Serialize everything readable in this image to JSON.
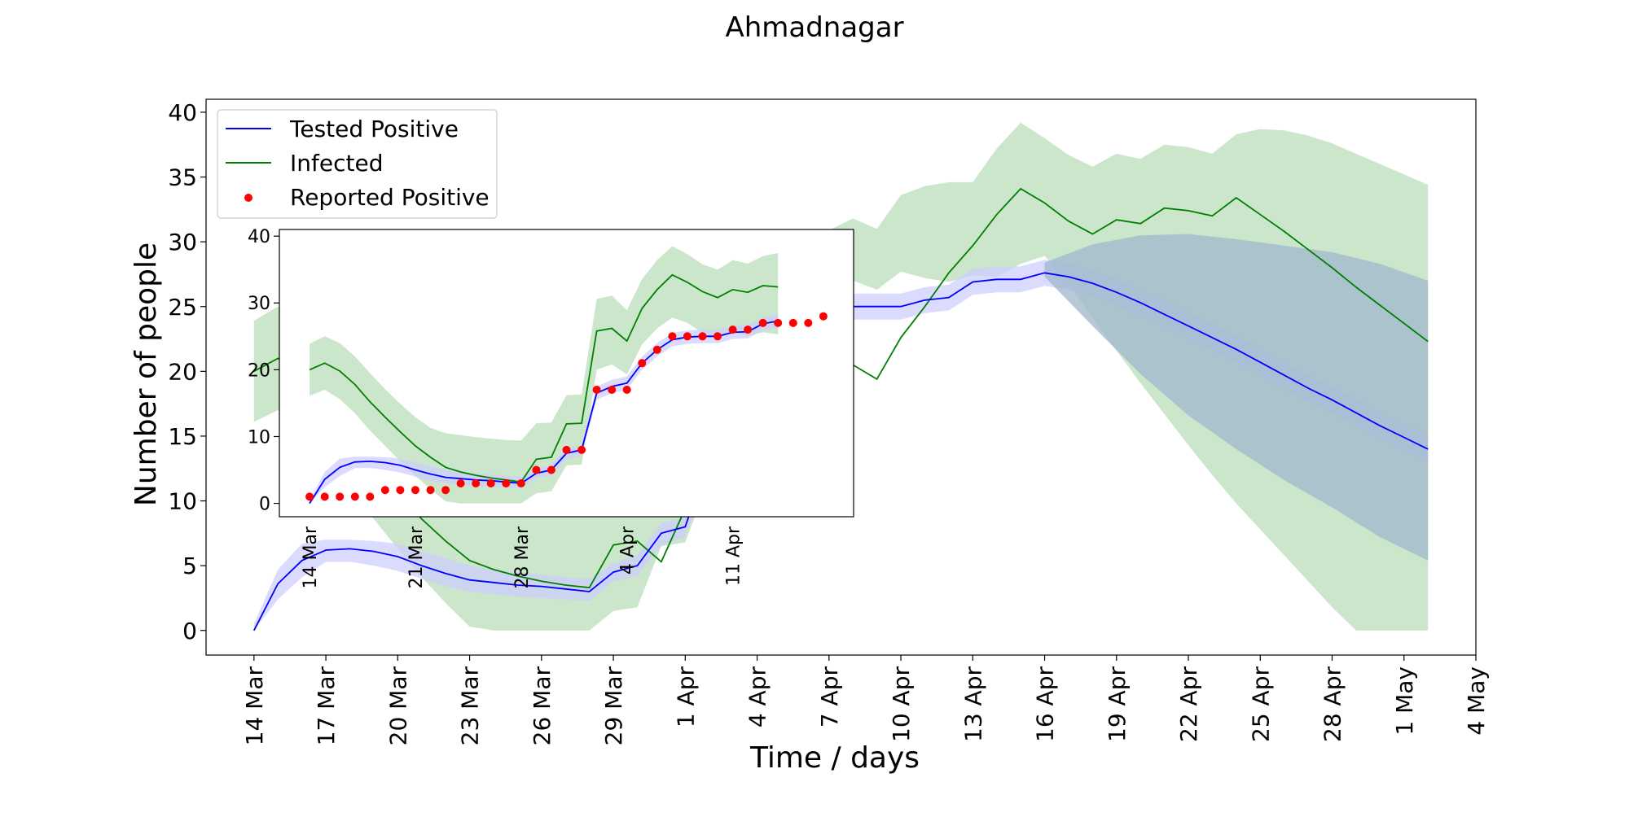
{
  "chart_data": [
    {
      "id": "main",
      "type": "line",
      "title": "Ahmadnagar",
      "xlabel": "Time / days",
      "ylabel": "Number of people",
      "ylim": [
        -1.9,
        41
      ],
      "xlim": [
        "2020-03-12",
        "2020-05-04"
      ],
      "yticks": [
        0,
        5,
        10,
        15,
        20,
        25,
        30,
        35,
        40
      ],
      "xticks": [
        "14 Mar",
        "17 Mar",
        "20 Mar",
        "23 Mar",
        "26 Mar",
        "29 Mar",
        "1 Apr",
        "4 Apr",
        "7 Apr",
        "10 Apr",
        "13 Apr",
        "16 Apr",
        "19 Apr",
        "22 Apr",
        "25 Apr",
        "28 Apr",
        "1 May",
        "4 May"
      ],
      "xtick_dates": [
        "2020-03-14",
        "2020-03-17",
        "2020-03-20",
        "2020-03-23",
        "2020-03-26",
        "2020-03-29",
        "2020-04-01",
        "2020-04-04",
        "2020-04-07",
        "2020-04-10",
        "2020-04-13",
        "2020-04-16",
        "2020-04-19",
        "2020-04-22",
        "2020-04-25",
        "2020-04-28",
        "2020-05-01",
        "2020-05-04"
      ],
      "grid": false,
      "legend_position": "upper-left",
      "legend": [
        "Tested Positive",
        "Infected",
        "Reported Positive"
      ],
      "series": [
        {
          "name": "Infected",
          "color": "#008000",
          "band_color": "#b6dbb6",
          "x": [
            "2020-03-14",
            "2020-03-15",
            "2020-03-16",
            "2020-03-17",
            "2020-03-18",
            "2020-03-19",
            "2020-03-20",
            "2020-03-21",
            "2020-03-22",
            "2020-03-23",
            "2020-03-24",
            "2020-03-25",
            "2020-03-26",
            "2020-03-27",
            "2020-03-28",
            "2020-03-29",
            "2020-03-30",
            "2020-03-31",
            "2020-04-01",
            "2020-04-02",
            "2020-04-03",
            "2020-04-04",
            "2020-04-05",
            "2020-04-06",
            "2020-04-07",
            "2020-04-08",
            "2020-04-09",
            "2020-04-10",
            "2020-04-11",
            "2020-04-12",
            "2020-04-13",
            "2020-04-14",
            "2020-04-15",
            "2020-04-16",
            "2020-04-17",
            "2020-04-18",
            "2020-04-19",
            "2020-04-20",
            "2020-04-21",
            "2020-04-22",
            "2020-04-23",
            "2020-04-24",
            "2020-04-25",
            "2020-04-26",
            "2020-04-27",
            "2020-04-28",
            "2020-04-29",
            "2020-04-30",
            "2020-05-01",
            "2020-05-02"
          ],
          "values": [
            20.0,
            21.0,
            19.8,
            17.8,
            15.2,
            12.9,
            10.7,
            8.6,
            6.9,
            5.4,
            4.7,
            4.2,
            3.8,
            3.5,
            3.3,
            6.6,
            6.9,
            5.3,
            9.4,
            12.2,
            14.6,
            16.7,
            14.8,
            16.8,
            19.4,
            20.5,
            19.4,
            22.6,
            25.0,
            27.6,
            29.7,
            32.1,
            34.1,
            33.0,
            31.6,
            30.6,
            31.7,
            31.4,
            32.6,
            32.4,
            32.0,
            33.4,
            32.1,
            30.8,
            29.4,
            28.0,
            26.5,
            25.1,
            23.7,
            22.3
          ],
          "lower": [
            16.1,
            17.0,
            15.6,
            13.5,
            10.9,
            8.6,
            6.3,
            4.1,
            2.1,
            0.3,
            0.0,
            0.0,
            0.0,
            0.0,
            0.0,
            1.5,
            1.8,
            6.5,
            6.8,
            11.7,
            14.2,
            19.5,
            22.6,
            25.6,
            27.5,
            27.0,
            26.3,
            27.7,
            27.2,
            26.9,
            27.4,
            27.3,
            28.3,
            28.9,
            26.8,
            24.1,
            21.6,
            19.1,
            16.7,
            14.3,
            12.0,
            9.8,
            7.8,
            5.8,
            3.8,
            1.8,
            0.0,
            0.0,
            0.0,
            0.0
          ],
          "upper": [
            23.9,
            25.0,
            24.0,
            22.0,
            19.5,
            17.1,
            14.9,
            12.9,
            11.3,
            10.5,
            10.2,
            9.9,
            9.7,
            9.5,
            9.4,
            10.7,
            10.9,
            11.3,
            12.1,
            15.7,
            18.3,
            22.8,
            25.3,
            28.2,
            30.9,
            31.8,
            31.0,
            33.6,
            34.3,
            34.6,
            34.6,
            37.2,
            39.2,
            38.0,
            36.7,
            35.8,
            36.8,
            36.4,
            37.5,
            37.3,
            36.8,
            38.3,
            38.7,
            38.6,
            38.2,
            37.6,
            36.8,
            36.0,
            35.2,
            34.4
          ]
        },
        {
          "name": "Tested Positive",
          "color": "#0000ff",
          "band_color": "#ccccff",
          "x": [
            "2020-03-14",
            "2020-03-15",
            "2020-03-16",
            "2020-03-17",
            "2020-03-18",
            "2020-03-19",
            "2020-03-20",
            "2020-03-21",
            "2020-03-22",
            "2020-03-23",
            "2020-03-24",
            "2020-03-25",
            "2020-03-26",
            "2020-03-27",
            "2020-03-28",
            "2020-03-29",
            "2020-03-30",
            "2020-03-31",
            "2020-04-01",
            "2020-04-02",
            "2020-04-03",
            "2020-04-04",
            "2020-04-05",
            "2020-04-06",
            "2020-04-07",
            "2020-04-08",
            "2020-04-09",
            "2020-04-10",
            "2020-04-11",
            "2020-04-12",
            "2020-04-13",
            "2020-04-14",
            "2020-04-15",
            "2020-04-16",
            "2020-04-17",
            "2020-04-18",
            "2020-04-19",
            "2020-04-20",
            "2020-04-21",
            "2020-04-22",
            "2020-04-23",
            "2020-04-24",
            "2020-04-25",
            "2020-04-26",
            "2020-04-27",
            "2020-04-28",
            "2020-04-29",
            "2020-04-30",
            "2020-05-01",
            "2020-05-02"
          ],
          "values": [
            0.0,
            3.6,
            5.4,
            6.2,
            6.3,
            6.1,
            5.7,
            5.0,
            4.4,
            3.9,
            3.7,
            3.5,
            3.4,
            3.2,
            3.0,
            4.5,
            5.0,
            7.5,
            8.0,
            13.5,
            15.0,
            15.8,
            20.3,
            22.5,
            23.0,
            25.0,
            25.0,
            25.0,
            25.5,
            25.7,
            26.9,
            27.1,
            27.1,
            27.6,
            27.3,
            26.8,
            26.1,
            25.3,
            24.4,
            23.5,
            22.6,
            21.7,
            20.7,
            19.7,
            18.7,
            17.8,
            16.8,
            15.8,
            14.9,
            14.0
          ],
          "lower": [
            0.0,
            2.4,
            4.1,
            5.3,
            5.3,
            5.0,
            4.6,
            4.0,
            3.4,
            3.0,
            2.8,
            2.6,
            2.5,
            2.4,
            2.3,
            3.8,
            4.2,
            6.6,
            7.2,
            12.5,
            14.0,
            14.8,
            19.3,
            21.5,
            22.0,
            24.0,
            24.0,
            24.0,
            24.5,
            24.7,
            25.9,
            26.1,
            26.1,
            26.6,
            26.3,
            25.8,
            25.1,
            24.3,
            23.4,
            22.5,
            21.6,
            20.7,
            19.7,
            18.7,
            17.7,
            16.8,
            15.8,
            14.8,
            13.9,
            13.0
          ],
          "upper": [
            0.5,
            4.7,
            6.7,
            7.0,
            7.0,
            6.9,
            6.7,
            6.1,
            5.6,
            5.0,
            4.7,
            4.5,
            4.3,
            4.1,
            4.0,
            5.2,
            5.8,
            8.3,
            8.7,
            14.4,
            16.0,
            16.8,
            21.3,
            23.5,
            24.0,
            26.0,
            26.0,
            26.0,
            26.5,
            26.7,
            27.9,
            28.1,
            28.1,
            28.6,
            28.3,
            27.8,
            27.1,
            26.3,
            25.4,
            24.5,
            23.6,
            22.7,
            21.7,
            20.7,
            19.7,
            18.8,
            17.8,
            16.8,
            15.9,
            15.0
          ]
        },
        {
          "name": "Uncertainty (overlap)",
          "color": "#7f9fbf",
          "band_color": "#9fb7cc",
          "x": [
            "2020-04-16",
            "2020-04-18",
            "2020-04-20",
            "2020-04-22",
            "2020-04-24",
            "2020-04-26",
            "2020-04-28",
            "2020-04-30",
            "2020-05-02"
          ],
          "lower": [
            27.3,
            23.5,
            19.8,
            16.6,
            14.0,
            11.6,
            9.5,
            7.2,
            5.4
          ],
          "upper": [
            28.4,
            29.8,
            30.5,
            30.6,
            30.2,
            29.7,
            29.2,
            28.3,
            27.0
          ]
        }
      ]
    },
    {
      "id": "inset",
      "type": "line",
      "title": "",
      "xlabel": "",
      "ylabel": "",
      "ylim": [
        -2,
        41
      ],
      "xlim": [
        "2020-03-12",
        "2020-04-19"
      ],
      "yticks": [
        0,
        10,
        20,
        30,
        40
      ],
      "xticks": [
        "14 Mar",
        "21 Mar",
        "28 Mar",
        "4 Apr",
        "11 Apr"
      ],
      "xtick_dates": [
        "2020-03-14",
        "2020-03-21",
        "2020-03-28",
        "2020-04-04",
        "2020-04-11"
      ],
      "grid": false,
      "series": [
        {
          "name": "Infected",
          "color": "#008000",
          "band_color": "#b6dbb6",
          "x": [
            "2020-03-14",
            "2020-03-15",
            "2020-03-16",
            "2020-03-17",
            "2020-03-18",
            "2020-03-19",
            "2020-03-20",
            "2020-03-21",
            "2020-03-22",
            "2020-03-23",
            "2020-03-24",
            "2020-03-25",
            "2020-03-26",
            "2020-03-27",
            "2020-03-28",
            "2020-03-29",
            "2020-03-30",
            "2020-03-31",
            "2020-04-01",
            "2020-04-02",
            "2020-04-03",
            "2020-04-04",
            "2020-04-05",
            "2020-04-06",
            "2020-04-07",
            "2020-04-08",
            "2020-04-09",
            "2020-04-10",
            "2020-04-11",
            "2020-04-12",
            "2020-04-13",
            "2020-04-14"
          ],
          "values": [
            20.0,
            21.0,
            19.8,
            17.8,
            15.2,
            12.9,
            10.7,
            8.6,
            6.9,
            5.4,
            4.7,
            4.2,
            3.8,
            3.5,
            3.2,
            6.6,
            6.9,
            11.9,
            12.0,
            25.8,
            26.2,
            24.3,
            29.2,
            32.0,
            34.2,
            33.1,
            31.7,
            30.8,
            32.0,
            31.6,
            32.6,
            32.4
          ],
          "lower": [
            16.1,
            17.0,
            15.6,
            13.5,
            10.9,
            8.6,
            6.3,
            4.1,
            2.1,
            0.3,
            0.0,
            0.0,
            0.0,
            0.0,
            0.0,
            1.5,
            1.8,
            5.7,
            5.8,
            20.0,
            20.8,
            19.3,
            23.8,
            26.2,
            27.8,
            27.0,
            25.5,
            24.6,
            25.7,
            25.1,
            25.6,
            25.3
          ],
          "upper": [
            23.9,
            25.0,
            24.0,
            22.0,
            19.5,
            17.1,
            14.9,
            12.9,
            11.3,
            10.5,
            10.2,
            9.9,
            9.7,
            9.5,
            9.4,
            12.0,
            12.1,
            16.2,
            16.3,
            30.6,
            31.1,
            28.9,
            33.6,
            36.4,
            38.5,
            37.3,
            35.8,
            35.0,
            36.4,
            35.9,
            37.0,
            37.5
          ]
        },
        {
          "name": "Tested Positive",
          "color": "#0000ff",
          "band_color": "#ccccff",
          "x": [
            "2020-03-14",
            "2020-03-15",
            "2020-03-16",
            "2020-03-17",
            "2020-03-18",
            "2020-03-19",
            "2020-03-20",
            "2020-03-21",
            "2020-03-22",
            "2020-03-23",
            "2020-03-24",
            "2020-03-25",
            "2020-03-26",
            "2020-03-27",
            "2020-03-28",
            "2020-03-29",
            "2020-03-30",
            "2020-03-31",
            "2020-04-01",
            "2020-04-02",
            "2020-04-03",
            "2020-04-04",
            "2020-04-05",
            "2020-04-06",
            "2020-04-07",
            "2020-04-08",
            "2020-04-09",
            "2020-04-10",
            "2020-04-11",
            "2020-04-12",
            "2020-04-13",
            "2020-04-14"
          ],
          "values": [
            0.0,
            3.6,
            5.4,
            6.2,
            6.3,
            6.1,
            5.7,
            5.0,
            4.4,
            3.9,
            3.7,
            3.5,
            3.4,
            3.2,
            3.0,
            4.5,
            5.0,
            7.5,
            8.0,
            16.5,
            17.5,
            18.0,
            21.0,
            23.0,
            24.5,
            24.9,
            25.0,
            25.0,
            25.6,
            25.7,
            26.9,
            27.3
          ],
          "lower": [
            0.0,
            2.4,
            4.1,
            5.3,
            5.3,
            5.0,
            4.6,
            4.0,
            3.4,
            3.0,
            2.8,
            2.6,
            2.5,
            2.4,
            2.3,
            3.8,
            4.2,
            6.6,
            7.2,
            15.5,
            16.5,
            17.0,
            20.0,
            22.0,
            23.5,
            23.9,
            24.0,
            24.0,
            24.6,
            24.7,
            25.9,
            26.3
          ],
          "upper": [
            0.5,
            4.7,
            6.7,
            7.0,
            7.0,
            6.9,
            6.7,
            6.1,
            5.6,
            5.0,
            4.7,
            4.5,
            4.3,
            4.1,
            4.0,
            5.2,
            5.8,
            8.3,
            8.7,
            17.5,
            18.5,
            19.0,
            22.0,
            24.0,
            25.5,
            25.9,
            26.0,
            26.0,
            26.6,
            26.7,
            27.9,
            28.3
          ]
        },
        {
          "name": "Reported Positive",
          "color": "#ff0000",
          "marker": "dot",
          "x": [
            "2020-03-14",
            "2020-03-15",
            "2020-03-16",
            "2020-03-17",
            "2020-03-18",
            "2020-03-19",
            "2020-03-20",
            "2020-03-21",
            "2020-03-22",
            "2020-03-23",
            "2020-03-24",
            "2020-03-25",
            "2020-03-26",
            "2020-03-27",
            "2020-03-28",
            "2020-03-29",
            "2020-03-30",
            "2020-03-31",
            "2020-04-01",
            "2020-04-02",
            "2020-04-03",
            "2020-04-04",
            "2020-04-05",
            "2020-04-06",
            "2020-04-07",
            "2020-04-08",
            "2020-04-09",
            "2020-04-10",
            "2020-04-11",
            "2020-04-12",
            "2020-04-13",
            "2020-04-14",
            "2020-04-15",
            "2020-04-16",
            "2020-04-17"
          ],
          "values": [
            1,
            1,
            1,
            1,
            1,
            2,
            2,
            2,
            2,
            2,
            3,
            3,
            3,
            3,
            3,
            5,
            5,
            8,
            8,
            17,
            17,
            17,
            21,
            23,
            25,
            25,
            25,
            25,
            26,
            26,
            27,
            27,
            27,
            27,
            28
          ]
        }
      ]
    }
  ]
}
